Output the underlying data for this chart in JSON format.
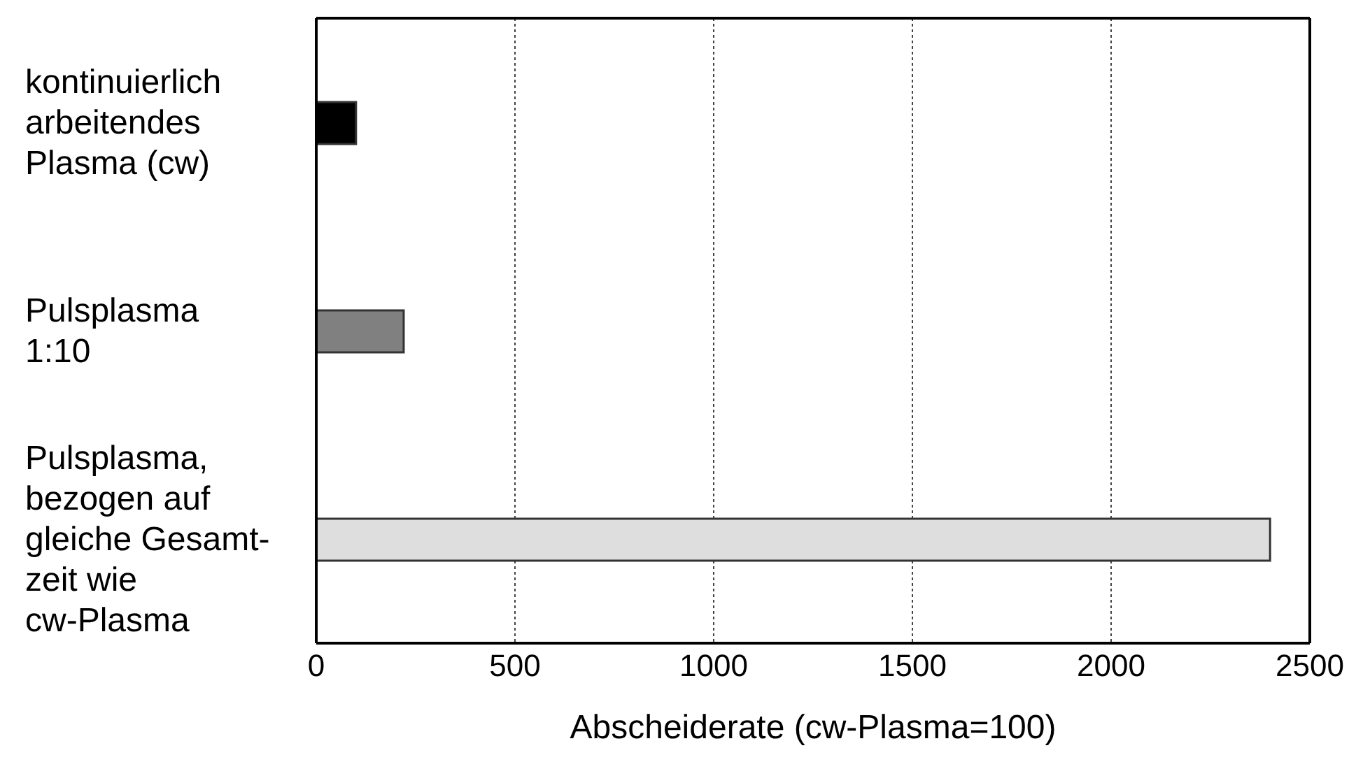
{
  "chart_data": {
    "type": "bar",
    "orientation": "horizontal",
    "categories": [
      "kontinuierlich\narbeitendes\nPlasma (cw)",
      "Pulsplasma\n1:10",
      "Pulsplasma,\nbezogen auf\ngleiche Gesamt-\nzeit wie\ncw-Plasma"
    ],
    "values": [
      100,
      220,
      2400
    ],
    "colors": [
      "#000000",
      "#808080",
      "#dedede"
    ],
    "xlabel": "Abscheiderate (cw-Plasma=100)",
    "xlim": [
      0,
      2500
    ],
    "xticks": [
      0,
      500,
      1000,
      1500,
      2000,
      2500
    ],
    "grid": "x"
  }
}
